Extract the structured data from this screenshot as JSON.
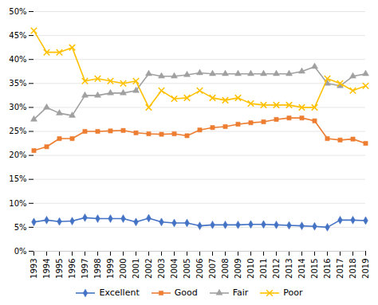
{
  "chart_data": {
    "type": "line",
    "x": [
      1993,
      1994,
      1995,
      1996,
      1997,
      1998,
      1999,
      2000,
      2001,
      2002,
      2003,
      2004,
      2005,
      2006,
      2007,
      2008,
      2009,
      2010,
      2011,
      2012,
      2013,
      2014,
      2015,
      2016,
      2017,
      2018,
      2019
    ],
    "series": [
      {
        "name": "Excellent",
        "color": "#4472C4",
        "marker": "diamond",
        "values": [
          6.1,
          6.5,
          6.2,
          6.3,
          7.0,
          6.8,
          6.8,
          6.8,
          6.1,
          6.9,
          6.1,
          5.9,
          5.9,
          5.3,
          5.5,
          5.5,
          5.5,
          5.6,
          5.6,
          5.5,
          5.4,
          5.3,
          5.2,
          5.0,
          6.5,
          6.5,
          6.4
        ]
      },
      {
        "name": "Good",
        "color": "#ED7D31",
        "marker": "square",
        "values": [
          21.0,
          21.8,
          23.5,
          23.5,
          25.0,
          25.0,
          25.1,
          25.2,
          24.7,
          24.5,
          24.4,
          24.5,
          24.1,
          25.3,
          25.8,
          26.0,
          26.5,
          26.8,
          27.0,
          27.5,
          27.8,
          27.8,
          27.2,
          23.5,
          23.2,
          23.4,
          22.5
        ]
      },
      {
        "name": "Fair",
        "color": "#A0A0A0",
        "marker": "triangle",
        "values": [
          27.5,
          30.0,
          28.8,
          28.3,
          32.5,
          32.5,
          33.0,
          33.0,
          33.5,
          37.0,
          36.5,
          36.5,
          36.8,
          37.2,
          37.0,
          37.0,
          37.0,
          37.0,
          37.0,
          37.0,
          37.0,
          37.5,
          38.5,
          35.0,
          34.5,
          36.5,
          37.0
        ]
      },
      {
        "name": "Poor",
        "color": "#FFC000",
        "marker": "x",
        "values": [
          46.0,
          41.5,
          41.5,
          42.5,
          35.5,
          36.0,
          35.5,
          35.0,
          35.5,
          30.0,
          33.5,
          31.8,
          32.0,
          33.5,
          32.0,
          31.5,
          32.0,
          30.8,
          30.5,
          30.5,
          30.5,
          30.0,
          30.0,
          36.0,
          35.0,
          33.5,
          34.5
        ]
      }
    ],
    "xlim": [
      1993,
      2019
    ],
    "xticks": [
      1993,
      1994,
      1995,
      1996,
      1997,
      1998,
      1999,
      2000,
      2001,
      2002,
      2003,
      2004,
      2005,
      2006,
      2007,
      2008,
      2009,
      2010,
      2011,
      2012,
      2013,
      2014,
      2015,
      2016,
      2017,
      2018,
      2019
    ],
    "ylim": [
      0,
      50
    ],
    "yticks": [
      {
        "value": 0,
        "label": "0%"
      },
      {
        "value": 5,
        "label": "5%"
      },
      {
        "value": 10,
        "label": "10%"
      },
      {
        "value": 15,
        "label": "15%"
      },
      {
        "value": 20,
        "label": "20%"
      },
      {
        "value": 25,
        "label": "25%"
      },
      {
        "value": 30,
        "label": "30%"
      },
      {
        "value": 35,
        "label": "35%"
      },
      {
        "value": 40,
        "label": "40%"
      },
      {
        "value": 45,
        "label": "45%"
      },
      {
        "value": 50,
        "label": "50%"
      }
    ],
    "grid": true,
    "legend": "bottom"
  }
}
